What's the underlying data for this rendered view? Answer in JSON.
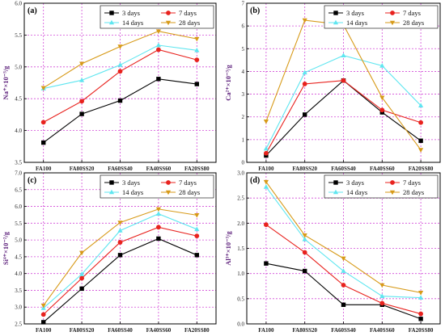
{
  "colors": {
    "3 days": "#000000",
    "7 days": "#e8221e",
    "14 days": "#5fe6f0",
    "28 days": "#d79a18",
    "grid": "#d24ad8",
    "ylabel": "#5b1e7a"
  },
  "chart_data": [
    {
      "type": "line",
      "panel_label": "(a)",
      "categories": [
        "FA100",
        "FA80SS20",
        "FA60SS40",
        "FA40SS60",
        "FA20SS80"
      ],
      "ylabel": "Na⁺×10⁻³/g",
      "ylim": [
        3.5,
        6.0
      ],
      "yticks": [
        "3.5",
        "4.0",
        "4.5",
        "5.0",
        "5.5",
        "6.0"
      ],
      "grid": true,
      "legend_position": "top-right",
      "series": [
        {
          "name": "3 days",
          "marker": "square",
          "values": [
            3.81,
            4.26,
            4.47,
            4.81,
            4.73
          ]
        },
        {
          "name": "7 days",
          "marker": "circle",
          "values": [
            4.13,
            4.46,
            4.93,
            5.27,
            5.11
          ]
        },
        {
          "name": "14 days",
          "marker": "triangle-up",
          "values": [
            4.66,
            4.79,
            5.03,
            5.34,
            5.26
          ]
        },
        {
          "name": "28 days",
          "marker": "triangle-down",
          "values": [
            4.67,
            5.05,
            5.32,
            5.56,
            5.44
          ]
        }
      ]
    },
    {
      "type": "line",
      "panel_label": "(b)",
      "categories": [
        "FA100",
        "FA80SS20",
        "FA60SS40",
        "FA40SS60",
        "FA20SS80"
      ],
      "ylabel": "Ca²⁺×10⁻³/g",
      "ylim": [
        0,
        7
      ],
      "yticks": [
        "0",
        "1",
        "2",
        "3",
        "4",
        "5",
        "6",
        "7"
      ],
      "grid": true,
      "legend_position": "top-right",
      "series": [
        {
          "name": "3 days",
          "marker": "square",
          "values": [
            0.3,
            2.1,
            3.6,
            2.2,
            0.95
          ]
        },
        {
          "name": "7 days",
          "marker": "circle",
          "values": [
            0.4,
            3.45,
            3.6,
            2.3,
            1.75
          ]
        },
        {
          "name": "14 days",
          "marker": "triangle-up",
          "values": [
            0.6,
            3.95,
            4.7,
            4.25,
            2.5
          ]
        },
        {
          "name": "28 days",
          "marker": "triangle-down",
          "values": [
            1.8,
            6.25,
            6.05,
            2.85,
            0.55
          ]
        }
      ]
    },
    {
      "type": "line",
      "panel_label": "(c)",
      "categories": [
        "FA100",
        "FA80SS20",
        "FA60SS40",
        "FA40SS60",
        "FA20SS80"
      ],
      "ylabel": "Si⁴⁺×10⁻²/g",
      "ylim": [
        2.5,
        7.0
      ],
      "yticks": [
        "2.5",
        "3.0",
        "3.5",
        "4.0",
        "4.5",
        "5.0",
        "5.5",
        "6.0",
        "6.5",
        "7.0"
      ],
      "grid": true,
      "legend_position": "top-right",
      "series": [
        {
          "name": "3 days",
          "marker": "square",
          "values": [
            2.55,
            3.55,
            4.55,
            5.04,
            4.55
          ]
        },
        {
          "name": "7 days",
          "marker": "circle",
          "values": [
            2.78,
            3.86,
            4.93,
            5.38,
            5.12
          ]
        },
        {
          "name": "14 days",
          "marker": "triangle-up",
          "values": [
            2.97,
            3.98,
            5.28,
            5.78,
            5.32
          ]
        },
        {
          "name": "28 days",
          "marker": "triangle-down",
          "values": [
            3.05,
            4.62,
            5.52,
            5.92,
            5.74
          ]
        }
      ]
    },
    {
      "type": "line",
      "panel_label": "(d)",
      "categories": [
        "FA100",
        "FA80SS20",
        "FA60SS40",
        "FA40SS60",
        "FA20SS80"
      ],
      "ylabel": "Al³⁺×10⁻³/g",
      "ylim": [
        0,
        3.0
      ],
      "yticks": [
        "0.0",
        "0.5",
        "1.0",
        "1.5",
        "2.0",
        "2.5",
        "3.0"
      ],
      "grid": true,
      "legend_position": "top-right",
      "series": [
        {
          "name": "3 days",
          "marker": "square",
          "values": [
            1.2,
            1.05,
            0.38,
            0.38,
            0.1
          ]
        },
        {
          "name": "7 days",
          "marker": "circle",
          "values": [
            1.97,
            1.42,
            0.77,
            0.41,
            0.2
          ]
        },
        {
          "name": "14 days",
          "marker": "triangle-up",
          "values": [
            2.72,
            1.68,
            1.05,
            0.55,
            0.52
          ]
        },
        {
          "name": "28 days",
          "marker": "triangle-down",
          "values": [
            2.82,
            1.76,
            1.3,
            0.77,
            0.62
          ]
        }
      ]
    }
  ]
}
